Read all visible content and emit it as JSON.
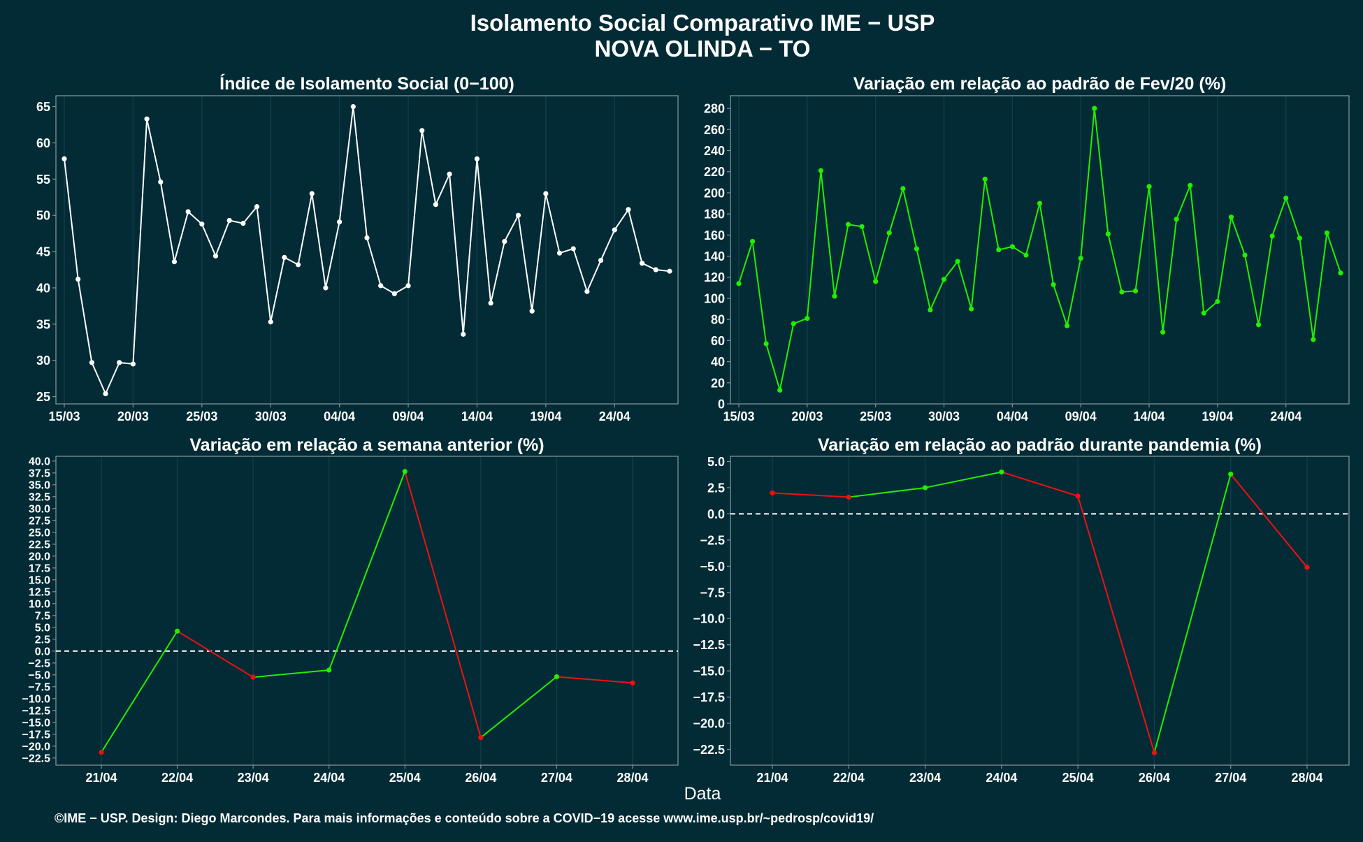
{
  "header": {
    "title": "Isolamento Social Comparativo IME − USP",
    "subtitle": "NOVA OLINDA − TO"
  },
  "footer": {
    "xlabel": "Data",
    "credit": "©IME − USP. Design: Diego Marcondes. Para mais informações e conteúdo sobre a COVID−19 acesse www.ime.usp.br/~pedrosp/covid19/"
  },
  "colors": {
    "background": "#022b35",
    "panel_border": "#7f9196",
    "grid": "#0f3c47",
    "white_line": "#ffffff",
    "up": "#22ee00",
    "down": "#ee1111",
    "zero_line": "#ffffff"
  },
  "chart_data": [
    {
      "id": "isolation-index",
      "type": "line",
      "title": "Índice de Isolamento Social (0−100)",
      "xlabel": "",
      "ylabel": "",
      "color_mode": "white",
      "zero_line": false,
      "x": [
        "15/03",
        "16/03",
        "17/03",
        "18/03",
        "19/03",
        "20/03",
        "21/03",
        "22/03",
        "23/03",
        "24/03",
        "25/03",
        "26/03",
        "27/03",
        "28/03",
        "29/03",
        "30/03",
        "31/03",
        "01/04",
        "02/04",
        "03/04",
        "04/04",
        "05/04",
        "06/04",
        "07/04",
        "08/04",
        "09/04",
        "10/04",
        "11/04",
        "12/04",
        "13/04",
        "14/04",
        "15/04",
        "16/04",
        "17/04",
        "18/04",
        "19/04",
        "20/04",
        "21/04",
        "22/04",
        "23/04",
        "24/04",
        "25/04",
        "26/04",
        "27/04",
        "28/04"
      ],
      "values": [
        57.8,
        41.2,
        29.7,
        25.4,
        29.7,
        29.5,
        63.3,
        54.6,
        43.6,
        50.5,
        48.8,
        44.4,
        49.3,
        48.9,
        51.2,
        35.3,
        44.2,
        43.2,
        53.0,
        40.0,
        49.1,
        65.0,
        46.9,
        40.3,
        39.2,
        40.3,
        61.7,
        51.5,
        55.7,
        33.6,
        57.8,
        37.9,
        46.4,
        50.0,
        36.8,
        53.0,
        44.8,
        45.4,
        39.5,
        43.8,
        48.0,
        50.8,
        43.4,
        42.5,
        42.3
      ],
      "x_ticks": [
        "15/03",
        "20/03",
        "25/03",
        "30/03",
        "04/04",
        "09/04",
        "14/04",
        "19/04",
        "24/04"
      ],
      "y_ticks": [
        25,
        30,
        35,
        40,
        45,
        50,
        55,
        60,
        65
      ],
      "ylim": [
        24,
        66.5
      ],
      "grid": true
    },
    {
      "id": "variation-feb",
      "type": "line",
      "title": "Variação em relação ao padrão de Fev/20 (%)",
      "xlabel": "",
      "ylabel": "",
      "color_mode": "green",
      "zero_line": false,
      "x": [
        "15/03",
        "16/03",
        "17/03",
        "18/03",
        "19/03",
        "20/03",
        "21/03",
        "22/03",
        "23/03",
        "24/03",
        "25/03",
        "26/03",
        "27/03",
        "28/03",
        "29/03",
        "30/03",
        "31/03",
        "01/04",
        "02/04",
        "03/04",
        "04/04",
        "05/04",
        "06/04",
        "07/04",
        "08/04",
        "09/04",
        "10/04",
        "11/04",
        "12/04",
        "13/04",
        "14/04",
        "15/04",
        "16/04",
        "17/04",
        "18/04",
        "19/04",
        "20/04",
        "21/04",
        "22/04",
        "23/04",
        "24/04",
        "25/04",
        "26/04",
        "27/04",
        "28/04"
      ],
      "values": [
        114,
        154,
        57,
        13,
        76,
        81,
        221,
        102,
        170,
        168,
        116,
        162,
        204,
        147,
        89,
        118,
        135,
        90,
        213,
        146,
        149,
        141,
        190,
        113,
        74,
        138,
        280,
        161,
        106,
        107,
        206,
        68,
        175,
        207,
        86,
        97,
        177,
        141,
        75,
        159,
        195,
        157,
        61,
        162,
        124
      ],
      "x_ticks": [
        "15/03",
        "20/03",
        "25/03",
        "30/03",
        "04/04",
        "09/04",
        "14/04",
        "19/04",
        "24/04"
      ],
      "y_ticks": [
        0,
        20,
        40,
        60,
        80,
        100,
        120,
        140,
        160,
        180,
        200,
        220,
        240,
        260,
        280
      ],
      "ylim": [
        0,
        292
      ],
      "grid": true
    },
    {
      "id": "variation-week",
      "type": "line",
      "title": "Variação em relação a semana anterior (%)",
      "xlabel": "",
      "ylabel": "",
      "color_mode": "updown",
      "zero_line": true,
      "x": [
        "21/04",
        "22/04",
        "23/04",
        "24/04",
        "25/04",
        "26/04",
        "27/04",
        "28/04"
      ],
      "values": [
        -21.3,
        4.2,
        -5.5,
        -4.0,
        37.8,
        -18.2,
        -5.4,
        -6.7
      ],
      "x_ticks": [
        "21/04",
        "22/04",
        "23/04",
        "24/04",
        "25/04",
        "26/04",
        "27/04",
        "28/04"
      ],
      "y_ticks": [
        "−22.5",
        "−20.0",
        "−17.5",
        "−15.0",
        "−12.5",
        "−10.0",
        "−7.5",
        "−5.0",
        "−2.5",
        "0.0",
        "2.5",
        "5.0",
        "7.5",
        "10.0",
        "12.5",
        "15.0",
        "17.5",
        "20.0",
        "22.5",
        "25.0",
        "27.5",
        "30.0",
        "32.5",
        "35.0",
        "37.5",
        "40.0"
      ],
      "ylim": [
        -24.0,
        41.0
      ],
      "grid": true
    },
    {
      "id": "variation-pandemic",
      "type": "line",
      "title": "Variação em relação ao padrão durante pandemia (%)",
      "xlabel": "",
      "ylabel": "",
      "color_mode": "updown",
      "zero_line": true,
      "x": [
        "21/04",
        "22/04",
        "23/04",
        "24/04",
        "25/04",
        "26/04",
        "27/04",
        "28/04"
      ],
      "values": [
        2.0,
        1.6,
        2.5,
        4.0,
        1.7,
        -22.8,
        3.8,
        -5.1
      ],
      "x_ticks": [
        "21/04",
        "22/04",
        "23/04",
        "24/04",
        "25/04",
        "26/04",
        "27/04",
        "28/04"
      ],
      "y_ticks": [
        "−22.5",
        "−20.0",
        "−17.5",
        "−15.0",
        "−12.5",
        "−10.0",
        "−7.5",
        "−5.0",
        "−2.5",
        "0.0",
        "2.5",
        "5.0"
      ],
      "ylim": [
        -24.0,
        5.5
      ],
      "grid": true
    }
  ]
}
